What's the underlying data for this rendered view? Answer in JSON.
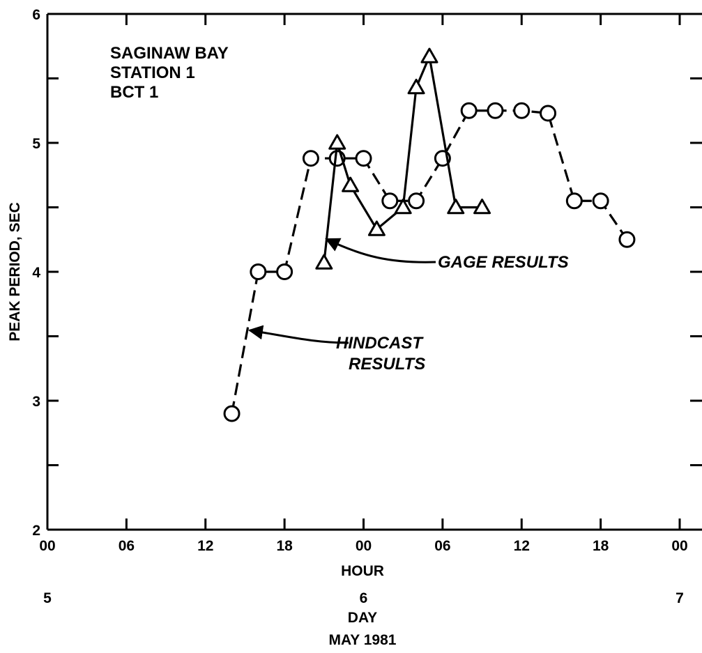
{
  "chart_data": {
    "type": "line",
    "title_lines": [
      "SAGINAW BAY",
      "STATION 1",
      "BCT 1"
    ],
    "xlabel": "HOUR",
    "day_label": "DAY",
    "month_label": "MAY 1981",
    "ylabel": "PEAK PERIOD, SEC",
    "x_unit": "hours from 00 on May 5, 1981",
    "xlim": [
      0,
      48
    ],
    "ylim": [
      2,
      6
    ],
    "x_ticks": [
      {
        "x": 0,
        "label": "00"
      },
      {
        "x": 6,
        "label": "06"
      },
      {
        "x": 12,
        "label": "12"
      },
      {
        "x": 18,
        "label": "18"
      },
      {
        "x": 24,
        "label": "00"
      },
      {
        "x": 30,
        "label": "06"
      },
      {
        "x": 36,
        "label": "12"
      },
      {
        "x": 42,
        "label": "18"
      },
      {
        "x": 48,
        "label": "00"
      }
    ],
    "y_ticks": [
      {
        "y": 2,
        "label": "2"
      },
      {
        "y": 3,
        "label": "3"
      },
      {
        "y": 4,
        "label": "4"
      },
      {
        "y": 5,
        "label": "5"
      },
      {
        "y": 6,
        "label": "6"
      }
    ],
    "y_minor_ticks": [
      2.5,
      3.5,
      4.5,
      5.5
    ],
    "day_ticks": [
      {
        "x": 0,
        "label": "5"
      },
      {
        "x": 24,
        "label": "6"
      },
      {
        "x": 48,
        "label": "7"
      }
    ],
    "series": [
      {
        "name": "HINDCAST RESULTS",
        "line_style": "dashed",
        "marker": "circle",
        "x": [
          14,
          16,
          18,
          20,
          22,
          24,
          26,
          28,
          30,
          32,
          34,
          36,
          38,
          40,
          42,
          44
        ],
        "y": [
          2.9,
          4.0,
          4.0,
          4.88,
          4.88,
          4.88,
          4.55,
          4.55,
          4.88,
          5.25,
          5.25,
          5.25,
          5.23,
          4.55,
          4.55,
          4.25
        ]
      },
      {
        "name": "GAGE RESULTS",
        "line_style": "solid",
        "marker": "triangle",
        "x": [
          21,
          22,
          23,
          25,
          27,
          28,
          29,
          31,
          33
        ],
        "y": [
          4.07,
          5.0,
          4.67,
          4.33,
          4.5,
          5.43,
          5.67,
          4.5,
          4.5
        ]
      }
    ],
    "annotations": [
      {
        "text": "GAGE RESULTS",
        "points_to": "GAGE RESULTS",
        "target": [
          21.1,
          4.27
        ]
      },
      {
        "text_lines": [
          "HINDCAST",
          "RESULTS"
        ],
        "points_to": "HINDCAST RESULTS",
        "target": [
          15.5,
          3.55
        ]
      }
    ]
  }
}
